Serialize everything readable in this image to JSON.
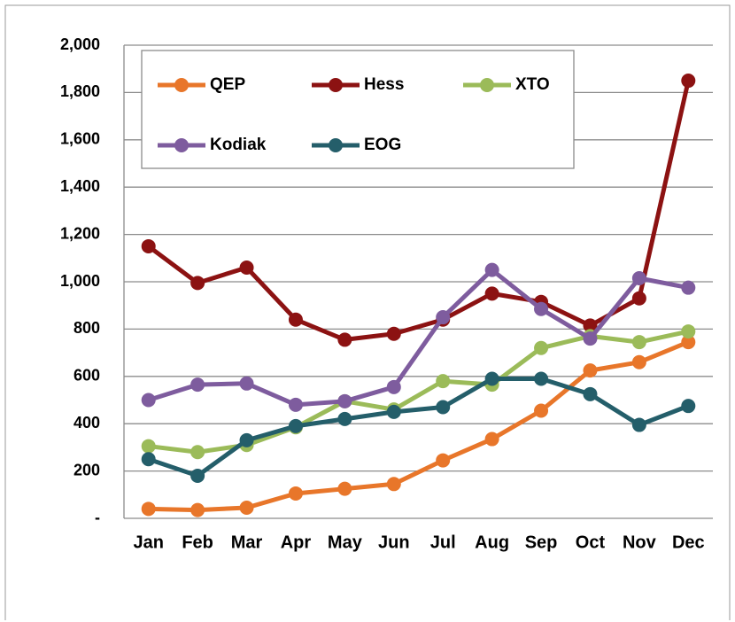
{
  "chart_data": {
    "type": "line",
    "categories": [
      "Jan",
      "Feb",
      "Mar",
      "Apr",
      "May",
      "Jun",
      "Jul",
      "Aug",
      "Sep",
      "Oct",
      "Nov",
      "Dec"
    ],
    "series": [
      {
        "name": "QEP",
        "color": "#e8762a",
        "values": [
          40,
          35,
          45,
          105,
          125,
          145,
          245,
          335,
          455,
          625,
          660,
          745
        ]
      },
      {
        "name": "Hess",
        "color": "#8c1212",
        "values": [
          1150,
          995,
          1060,
          840,
          755,
          780,
          840,
          950,
          915,
          815,
          930,
          1850
        ]
      },
      {
        "name": "XTO",
        "color": "#9bbb59",
        "values": [
          305,
          280,
          310,
          385,
          495,
          460,
          580,
          565,
          720,
          770,
          745,
          790
        ]
      },
      {
        "name": "Kodiak",
        "color": "#7e5c9e",
        "values": [
          500,
          565,
          570,
          480,
          495,
          555,
          850,
          1050,
          885,
          760,
          1015,
          975
        ]
      },
      {
        "name": "EOG",
        "color": "#245e6a",
        "values": [
          250,
          180,
          330,
          390,
          420,
          450,
          470,
          590,
          590,
          525,
          395,
          475
        ]
      }
    ],
    "ylim": [
      0,
      2000
    ],
    "yticks": [
      {
        "value": 0,
        "label": "-"
      },
      200,
      400,
      600,
      800,
      {
        "value": 1000,
        "label": "1,000"
      },
      {
        "value": 1200,
        "label": "1,200"
      },
      {
        "value": 1400,
        "label": "1,400"
      },
      {
        "value": 1600,
        "label": "1,600"
      },
      {
        "value": 1800,
        "label": "1,800"
      },
      {
        "value": 2000,
        "label": "2,000"
      }
    ],
    "grid": true
  }
}
